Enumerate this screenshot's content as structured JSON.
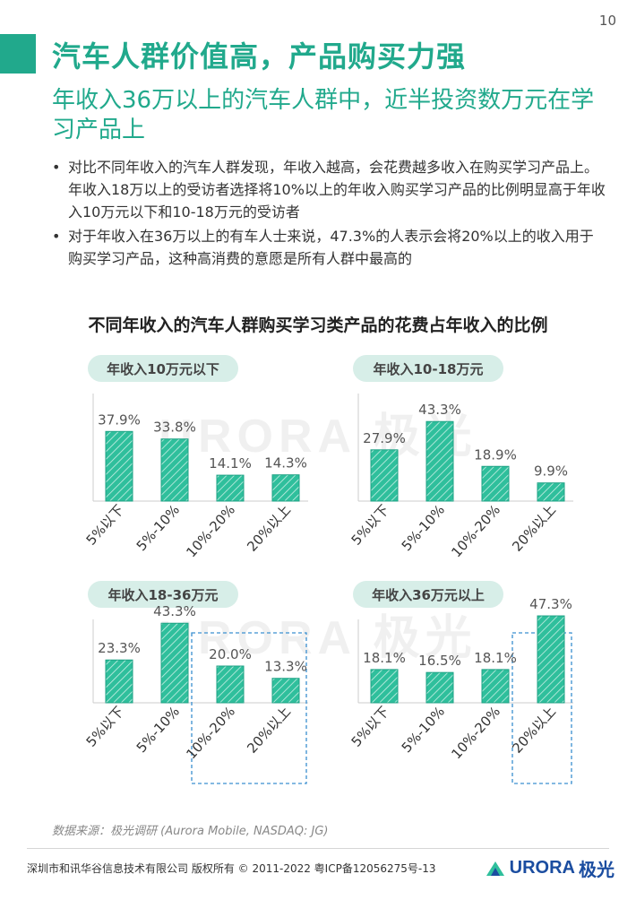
{
  "page_number": "10",
  "title": "汽车人群价值高，产品购买力强",
  "subtitle": "年收入36万以上的汽车人群中，近半投资数万元在学习产品上",
  "bullets": [
    "对比不同年收入的汽车人群发现，年收入越高，会花费越多收入在购买学习产品上。年收入18万以上的受访者选择将10%以上的年收入购买学习产品的比例明显高于年收入10万元以下和10-18万元的受访者",
    "对于年收入在36万以上的有车人士来说，47.3%的人表示会将20%以上的收入用于购买学习产品，这种高消费的意愿是所有人群中最高的"
  ],
  "bullet_symbol": "•",
  "source": "数据来源：极光调研 (Aurora Mobile, NASDAQ: JG)",
  "footer": "深圳市和讯华谷信息技术有限公司 版权所有 © 2011-2022 粤ICP备12056275号-13",
  "logo": {
    "text": "URORA",
    "cn": "极光"
  },
  "watermark": "URORA 极光",
  "colors": {
    "accent": "#21a98c",
    "bar_fill": "#2fbf9c",
    "pill": "#d7eee8",
    "highlight_box": "#3a8fd0"
  },
  "chart_data": {
    "title": "不同年收入的汽车人群购买学习类产品的花费占年收入的比例",
    "type": "bar",
    "panels": [
      {
        "name": "年收入10万元以下",
        "categories": [
          "5%以下",
          "5%-10%",
          "10%-20%",
          "20%以上"
        ],
        "values": [
          37.9,
          33.8,
          14.1,
          14.3
        ],
        "labels": [
          "37.9%",
          "33.8%",
          "14.1%",
          "14.3%"
        ],
        "highlight": []
      },
      {
        "name": "年收入10-18万元",
        "categories": [
          "5%以下",
          "5%-10%",
          "10%-20%",
          "20%以上"
        ],
        "values": [
          27.9,
          43.3,
          18.9,
          9.9
        ],
        "labels": [
          "27.9%",
          "43.3%",
          "18.9%",
          "9.9%"
        ],
        "highlight": []
      },
      {
        "name": "年收入18-36万元",
        "categories": [
          "5%以下",
          "5%-10%",
          "10%-20%",
          "20%以上"
        ],
        "values": [
          23.3,
          43.3,
          20.0,
          13.3
        ],
        "labels": [
          "23.3%",
          "43.3%",
          "20.0%",
          "13.3%"
        ],
        "highlight": [
          2,
          3
        ]
      },
      {
        "name": "年收入36万元以上",
        "categories": [
          "5%以下",
          "5%-10%",
          "10%-20%",
          "20%以上"
        ],
        "values": [
          18.1,
          16.5,
          18.1,
          47.3
        ],
        "labels": [
          "18.1%",
          "16.5%",
          "18.1%",
          "47.3%"
        ],
        "highlight": [
          3
        ]
      }
    ]
  }
}
